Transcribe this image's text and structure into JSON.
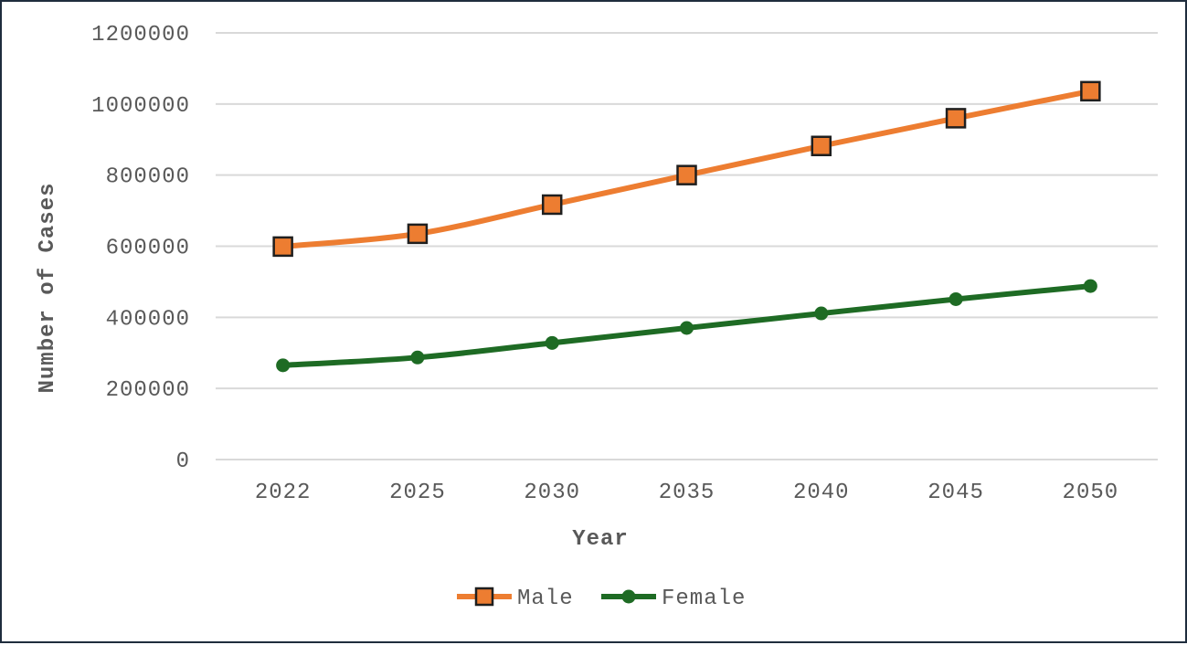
{
  "chart_data": {
    "type": "line",
    "categories": [
      "2022",
      "2025",
      "2030",
      "2035",
      "2040",
      "2045",
      "2050"
    ],
    "series": [
      {
        "name": "Male",
        "values": [
          599000,
          635000,
          717000,
          800000,
          882000,
          960000,
          1036000
        ],
        "color": "#ed7d31",
        "marker": "square"
      },
      {
        "name": "Female",
        "values": [
          265000,
          287000,
          328000,
          370000,
          411000,
          451000,
          488000
        ],
        "color": "#1e6b24",
        "marker": "circle"
      }
    ],
    "xlabel": "Year",
    "ylabel": "Number of Cases",
    "ylim": [
      0,
      1200000
    ],
    "yticks": [
      "0",
      "200000",
      "400000",
      "600000",
      "800000",
      "1000000",
      "1200000"
    ],
    "grid": true,
    "legend": "bottom-center"
  }
}
